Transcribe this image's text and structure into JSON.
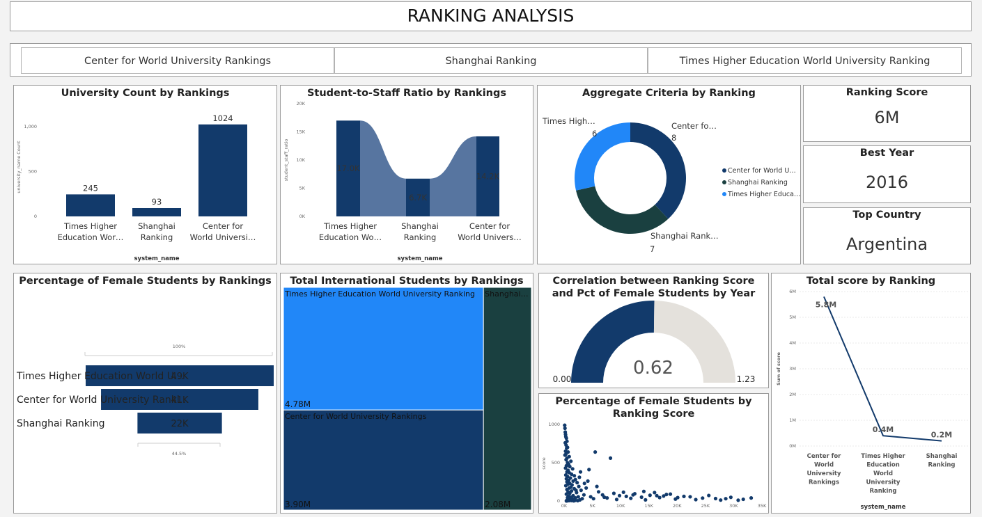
{
  "header": {
    "title": "RANKING ANALYSIS"
  },
  "tabs": [
    "Center for World University Rankings",
    "Shanghai Ranking",
    "Times Higher Education World University Ranking"
  ],
  "colors": {
    "navy": "#123a6b",
    "dark_green": "#1a4040",
    "bright_blue": "#2187f8",
    "steel": "#5775a0",
    "light_grey": "#e4e1dc"
  },
  "kpis": [
    {
      "title": "Ranking Score",
      "value": "6M"
    },
    {
      "title": "Best Year",
      "value": "2016"
    },
    {
      "title": "Top Country",
      "value": "Argentina"
    }
  ],
  "chart_data": [
    {
      "id": "university_count",
      "type": "bar",
      "title": "University Count by Rankings",
      "xlabel": "system_name",
      "ylabel": "university_name Count",
      "categories": [
        "Times Higher Education Wor…",
        "Shanghai Ranking",
        "Center for World Universi…"
      ],
      "category_lines": [
        [
          "Times Higher",
          "Education Wor…"
        ],
        [
          "Shanghai",
          "Ranking"
        ],
        [
          "Center for",
          "World Universi…"
        ]
      ],
      "values": [
        245,
        93,
        1024
      ],
      "value_labels": [
        "245",
        "93",
        "1024"
      ],
      "yticks": [
        {
          "v": 0,
          "label": "0"
        },
        {
          "v": 500,
          "label": "500"
        },
        {
          "v": 1000,
          "label": "1,000"
        }
      ],
      "ylim": [
        0,
        1100
      ]
    },
    {
      "id": "student_staff_ratio",
      "type": "bar",
      "title": "Student-to-Staff Ratio by Rankings",
      "xlabel": "system_name",
      "ylabel": "student_staff_ratio",
      "categories": [
        "Times Higher Education Wo…",
        "Shanghai Ranking",
        "Center for World Univers…"
      ],
      "category_lines": [
        [
          "Times Higher",
          "Education Wo…"
        ],
        [
          "Shanghai",
          "Ranking"
        ],
        [
          "Center for",
          "World Univers…"
        ]
      ],
      "values": [
        17000,
        6700,
        14200
      ],
      "value_labels": [
        "17.0K",
        "6.7K",
        "14.2K"
      ],
      "yticks": [
        {
          "v": 0,
          "label": "0K"
        },
        {
          "v": 5000,
          "label": "5K"
        },
        {
          "v": 10000,
          "label": "10K"
        },
        {
          "v": 15000,
          "label": "15K"
        },
        {
          "v": 20000,
          "label": "20K"
        }
      ],
      "ylim": [
        0,
        20000
      ]
    },
    {
      "id": "aggregate_criteria",
      "type": "pie",
      "title": "Aggregate Criteria by Ranking",
      "labels": [
        "Center for World U…",
        "Shanghai Ranking",
        "Times Highe Educa…"
      ],
      "legend_labels": [
        "Center for World U…",
        "Shanghai Ranking",
        "Times Higher Educa…"
      ],
      "slice_labels": [
        "Center fo…",
        "Shanghai Rank…",
        "Times High…"
      ],
      "values": [
        8,
        7,
        6
      ],
      "legend_position": "right"
    },
    {
      "id": "pct_female",
      "type": "bar",
      "title": "Percentage of Female Students by Rankings",
      "categories": [
        "Times Higher Education World U…",
        "Center for World University Ranki…",
        "Shanghai Ranking"
      ],
      "values": [
        49000,
        41000,
        22000
      ],
      "value_labels": [
        "49K",
        "41K",
        "22K"
      ],
      "top_label": "100%",
      "bottom_label": "44.5%"
    },
    {
      "id": "intl_students",
      "type": "heatmap",
      "title": "Total International Students by Rankings",
      "labels": [
        "Times Higher Education World University Ranking",
        "Center for World University Rankings",
        "Shanghai…"
      ],
      "values": [
        4780000,
        3900000,
        2080000
      ],
      "value_labels": [
        "4.78M",
        "3.90M",
        "2.08M"
      ]
    },
    {
      "id": "gauge",
      "type": "pie",
      "title": "Correlation between Ranking Score and Pct of Female Students by Year",
      "value": 0.62,
      "min": 0,
      "max": 1.23,
      "value_label": "0.62",
      "min_label": "0.00",
      "max_label": "1.23"
    },
    {
      "id": "scatter_female",
      "type": "scatter",
      "title": "Percentage of Female Students by Ranking Score",
      "ylabel": "score",
      "xticks": [
        "0K",
        "5K",
        "10K",
        "15K",
        "20K",
        "25K",
        "30K",
        "35K"
      ],
      "yticks": [
        "0",
        "500",
        "1000"
      ],
      "xlim": [
        0,
        35000
      ],
      "ylim": [
        0,
        1000
      ],
      "points": [
        [
          100,
          990
        ],
        [
          150,
          950
        ],
        [
          200,
          900
        ],
        [
          250,
          870
        ],
        [
          300,
          840
        ],
        [
          400,
          820
        ],
        [
          500,
          780
        ],
        [
          200,
          760
        ],
        [
          350,
          730
        ],
        [
          600,
          700
        ],
        [
          450,
          690
        ],
        [
          250,
          650
        ],
        [
          700,
          640
        ],
        [
          300,
          610
        ],
        [
          150,
          600
        ],
        [
          900,
          580
        ],
        [
          500,
          560
        ],
        [
          350,
          540
        ],
        [
          1200,
          520
        ],
        [
          600,
          500
        ],
        [
          800,
          480
        ],
        [
          400,
          460
        ],
        [
          1000,
          450
        ],
        [
          250,
          430
        ],
        [
          1500,
          420
        ],
        [
          700,
          400
        ],
        [
          500,
          380
        ],
        [
          900,
          370
        ],
        [
          1300,
          350
        ],
        [
          300,
          340
        ],
        [
          1800,
          330
        ],
        [
          600,
          320
        ],
        [
          1100,
          300
        ],
        [
          400,
          290
        ],
        [
          2000,
          280
        ],
        [
          800,
          270
        ],
        [
          1600,
          260
        ],
        [
          500,
          250
        ],
        [
          2300,
          240
        ],
        [
          1000,
          230
        ],
        [
          700,
          220
        ],
        [
          1400,
          210
        ],
        [
          300,
          200
        ],
        [
          2600,
          190
        ],
        [
          1200,
          180
        ],
        [
          900,
          170
        ],
        [
          1800,
          160
        ],
        [
          500,
          150
        ],
        [
          3000,
          140
        ],
        [
          1300,
          130
        ],
        [
          700,
          120
        ],
        [
          2200,
          110
        ],
        [
          1000,
          100
        ],
        [
          400,
          90
        ],
        [
          3500,
          80
        ],
        [
          1600,
          70
        ],
        [
          800,
          60
        ],
        [
          2500,
          55
        ],
        [
          1200,
          50
        ],
        [
          600,
          45
        ],
        [
          2000,
          40
        ],
        [
          900,
          35
        ],
        [
          3200,
          30
        ],
        [
          1500,
          25
        ],
        [
          700,
          20
        ],
        [
          2800,
          15
        ],
        [
          1100,
          12
        ],
        [
          500,
          10
        ],
        [
          1900,
          8
        ],
        [
          1300,
          6
        ],
        [
          900,
          5
        ],
        [
          2400,
          4
        ],
        [
          600,
          3
        ],
        [
          1700,
          2
        ],
        [
          400,
          1
        ],
        [
          2100,
          140
        ],
        [
          2700,
          310
        ],
        [
          3600,
          230
        ],
        [
          5500,
          640
        ],
        [
          8200,
          560
        ],
        [
          4400,
          410
        ],
        [
          6100,
          120
        ],
        [
          9800,
          70
        ],
        [
          12500,
          95
        ],
        [
          15200,
          75
        ],
        [
          17600,
          65
        ],
        [
          20100,
          45
        ],
        [
          22300,
          55
        ],
        [
          24500,
          38
        ],
        [
          26800,
          32
        ],
        [
          29500,
          48
        ],
        [
          33100,
          40
        ],
        [
          16000,
          110
        ],
        [
          18800,
          90
        ],
        [
          11000,
          60
        ],
        [
          13700,
          50
        ],
        [
          7600,
          40
        ],
        [
          5200,
          30
        ],
        [
          9300,
          20
        ],
        [
          14400,
          15
        ],
        [
          19700,
          25
        ],
        [
          23300,
          18
        ],
        [
          27700,
          12
        ],
        [
          30800,
          10
        ],
        [
          8800,
          100
        ],
        [
          10500,
          115
        ],
        [
          12200,
          80
        ],
        [
          14100,
          125
        ],
        [
          16400,
          70
        ],
        [
          18100,
          85
        ],
        [
          21200,
          60
        ],
        [
          25600,
          72
        ],
        [
          28600,
          30
        ],
        [
          31700,
          22
        ],
        [
          4700,
          55
        ],
        [
          6800,
          80
        ],
        [
          3900,
          170
        ],
        [
          2900,
          380
        ],
        [
          4200,
          260
        ],
        [
          5800,
          190
        ],
        [
          7100,
          50
        ],
        [
          11800,
          35
        ],
        [
          16900,
          45
        ]
      ]
    },
    {
      "id": "total_score",
      "type": "line",
      "title": "Total score by Ranking",
      "xlabel": "system_name",
      "ylabel": "Sum of score",
      "categories": [
        "Center for World University Rankings",
        "Times Higher Education World University Ranking",
        "Shanghai Ranking"
      ],
      "category_lines": [
        [
          "Center for",
          "World",
          "University",
          "Rankings"
        ],
        [
          "Times Higher",
          "Education",
          "World",
          "University",
          "Ranking"
        ],
        [
          "Shanghai",
          "Ranking"
        ]
      ],
      "values": [
        5800000,
        400000,
        200000
      ],
      "value_labels": [
        "5.8M",
        "0.4M",
        "0.2M"
      ],
      "yticks": [
        {
          "v": 0,
          "label": "0M"
        },
        {
          "v": 1000000,
          "label": "1M"
        },
        {
          "v": 2000000,
          "label": "2M"
        },
        {
          "v": 3000000,
          "label": "3M"
        },
        {
          "v": 4000000,
          "label": "4M"
        },
        {
          "v": 5000000,
          "label": "5M"
        },
        {
          "v": 6000000,
          "label": "6M"
        }
      ],
      "ylim": [
        0,
        6000000
      ]
    }
  ]
}
